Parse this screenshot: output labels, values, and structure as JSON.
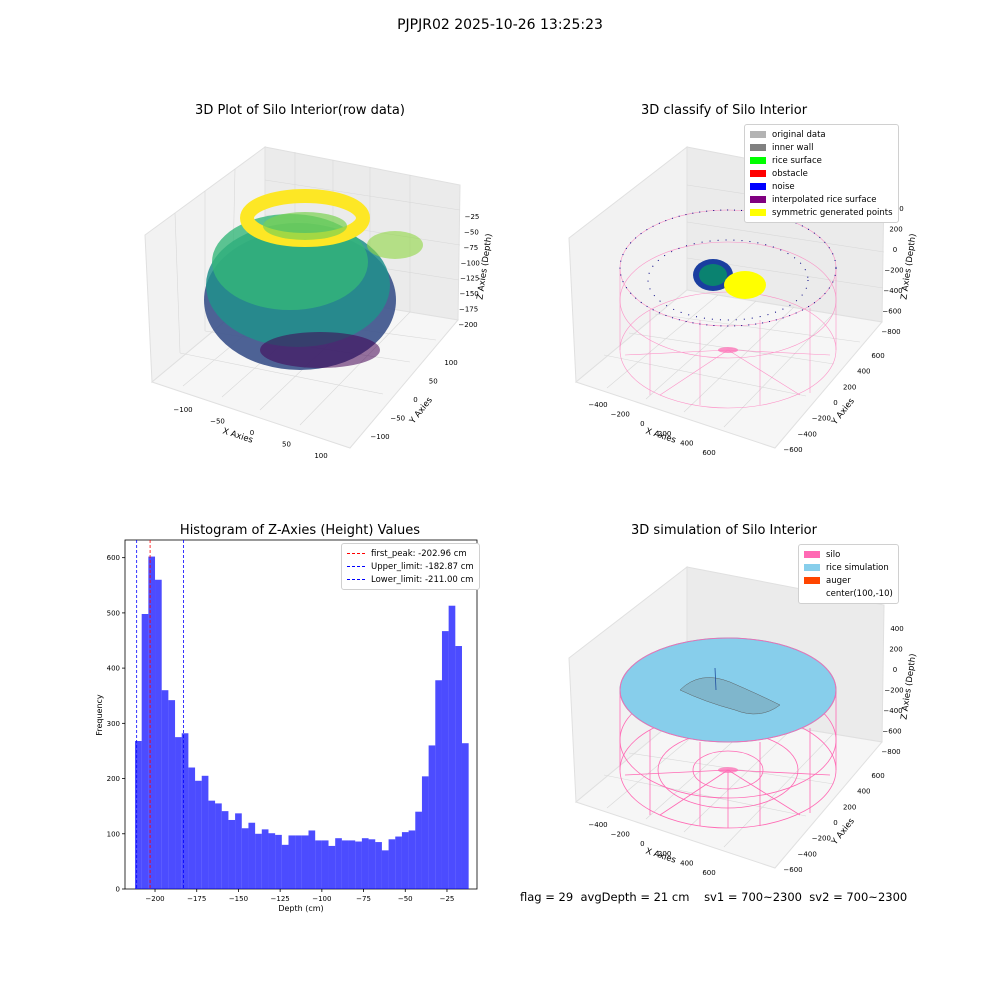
{
  "suptitle": "PJPJR02 2025-10-26 13:25:23",
  "footer": {
    "flag": "flag = 29",
    "avg_depth": "avgDepth = 21 cm",
    "sv1": "sv1 = 700~2300",
    "sv2": "sv2 = 700~2300"
  },
  "plot1": {
    "title": "3D Plot of Silo Interior(row data)",
    "xlabel": "X Axies",
    "ylabel": "Y Axies",
    "zlabel": "Z Axies (Depth)",
    "xticks": [
      "−100",
      "−50",
      "0",
      "50",
      "100"
    ],
    "yticks": [
      "−100",
      "−50",
      "0",
      "50",
      "100"
    ],
    "zticks": [
      "−25",
      "−50",
      "−75",
      "−100",
      "−125",
      "−150",
      "−175",
      "−200"
    ]
  },
  "plot2": {
    "title": "3D classify of Silo Interior",
    "xlabel": "X Axies",
    "ylabel": "Y Axies",
    "zlabel": "Z Axies (Depth)",
    "xticks": [
      "−400",
      "−200",
      "0",
      "200",
      "400",
      "600"
    ],
    "yticks": [
      "−600",
      "−400",
      "−200",
      "0",
      "200",
      "400",
      "600"
    ],
    "zticks": [
      "400",
      "200",
      "0",
      "−200",
      "−400",
      "−600",
      "−800"
    ],
    "legend": [
      {
        "label": "original data",
        "color": "#b3b3b3"
      },
      {
        "label": "inner wall",
        "color": "#808080"
      },
      {
        "label": "rice surface",
        "color": "#00ff00"
      },
      {
        "label": "obstacle",
        "color": "#ff0000"
      },
      {
        "label": "noise",
        "color": "#0000ff"
      },
      {
        "label": "interpolated rice surface",
        "color": "#800080"
      },
      {
        "label": "symmetric generated points",
        "color": "#ffff00"
      }
    ]
  },
  "plot3": {
    "title": "Histogram of Z-Axies (Height) Values",
    "xlabel": "Depth (cm)",
    "ylabel": "Frequency",
    "legend": [
      {
        "label": "first_peak: -202.96 cm",
        "color": "#ff0000"
      },
      {
        "label": "Upper_limit: -182.87 cm",
        "color": "#0000ff"
      },
      {
        "label": "Lower_limit: -211.00 cm",
        "color": "#0000ff"
      }
    ]
  },
  "plot4": {
    "title": "3D simulation of Silo Interior",
    "xlabel": "X Axies",
    "ylabel": "Y Axies",
    "zlabel": "Z Axies (Depth)",
    "xticks": [
      "−400",
      "−200",
      "0",
      "200",
      "400",
      "600"
    ],
    "yticks": [
      "−600",
      "−400",
      "−200",
      "0",
      "200",
      "400",
      "600"
    ],
    "zticks": [
      "400",
      "200",
      "0",
      "−200",
      "−400",
      "−600",
      "−800"
    ],
    "legend": [
      {
        "label": "silo",
        "color": "#ff69b4"
      },
      {
        "label": "rice simulation",
        "color": "#87ceeb"
      },
      {
        "label": "auger",
        "color": "#ff4500"
      },
      {
        "label": "center(100,-10)",
        "color": "none"
      }
    ]
  },
  "chart_data": [
    {
      "type": "bar",
      "title": "Histogram of Z-Axies (Height) Values",
      "xlabel": "Depth (cm)",
      "ylabel": "Frequency",
      "bin_start": -212,
      "bin_width": 4,
      "values": [
        268,
        498,
        602,
        560,
        360,
        342,
        275,
        282,
        220,
        196,
        205,
        160,
        155,
        141,
        125,
        137,
        110,
        120,
        100,
        108,
        101,
        98,
        80,
        97,
        97,
        97,
        106,
        88,
        88,
        78,
        92,
        88,
        88,
        86,
        92,
        90,
        85,
        70,
        90,
        95,
        103,
        106,
        140,
        204,
        260,
        378,
        467,
        513,
        440,
        264
      ],
      "xlim": [
        -218,
        -7
      ],
      "xticks": [
        -200,
        -175,
        -150,
        -125,
        -100,
        -75,
        -50,
        -25
      ],
      "ylim": [
        0,
        632
      ],
      "yticks": [
        0,
        100,
        200,
        300,
        400,
        500,
        600
      ],
      "bar_color": "#0000ff",
      "vlines": [
        {
          "label": "first_peak: -202.96 cm",
          "x": -202.96,
          "color": "#ff0000"
        },
        {
          "label": "Upper_limit: -182.87 cm",
          "x": -182.87,
          "color": "#0000ff"
        },
        {
          "label": "Lower_limit: -211.00 cm",
          "x": -211.0,
          "color": "#0000ff"
        }
      ],
      "legend_position": "top-right"
    }
  ]
}
